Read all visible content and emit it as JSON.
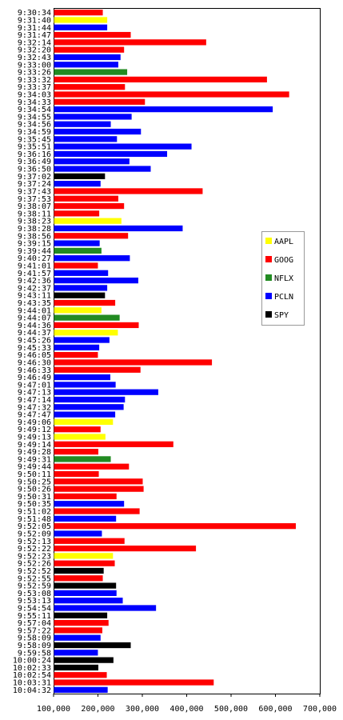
{
  "chart_data": {
    "type": "bar",
    "orientation": "horizontal",
    "xlim": [
      100000,
      700000
    ],
    "x_ticks": [
      100000,
      200000,
      300000,
      400000,
      500000,
      600000,
      700000
    ],
    "x_tick_labels": [
      "100,000",
      "200,000",
      "300,000",
      "400,000",
      "500,000",
      "600,000",
      "700,000"
    ],
    "grid": false,
    "legend_position": "right",
    "series_colors": {
      "AAPL": "#ffff00",
      "GOOG": "#ff0000",
      "NFLX": "#228b22",
      "PCLN": "#0000ff",
      "SPY": "#000000"
    },
    "legend": [
      "AAPL",
      "GOOG",
      "NFLX",
      "PCLN",
      "SPY"
    ],
    "bars": [
      {
        "label": "9:30:34",
        "series": "GOOG",
        "value": 210000
      },
      {
        "label": "9:31:40",
        "series": "AAPL",
        "value": 220000
      },
      {
        "label": "9:31:44",
        "series": "PCLN",
        "value": 220000
      },
      {
        "label": "9:31:47",
        "series": "GOOG",
        "value": 273000
      },
      {
        "label": "9:32:14",
        "series": "GOOG",
        "value": 443000
      },
      {
        "label": "9:32:20",
        "series": "GOOG",
        "value": 258000
      },
      {
        "label": "9:32:43",
        "series": "PCLN",
        "value": 250000
      },
      {
        "label": "9:33:00",
        "series": "PCLN",
        "value": 245000
      },
      {
        "label": "9:33:26",
        "series": "NFLX",
        "value": 265000
      },
      {
        "label": "9:33:32",
        "series": "GOOG",
        "value": 580000
      },
      {
        "label": "9:33:37",
        "series": "GOOG",
        "value": 260000
      },
      {
        "label": "9:34:03",
        "series": "GOOG",
        "value": 630000
      },
      {
        "label": "9:34:33",
        "series": "GOOG",
        "value": 305000
      },
      {
        "label": "9:34:54",
        "series": "PCLN",
        "value": 593000
      },
      {
        "label": "9:34:55",
        "series": "PCLN",
        "value": 275000
      },
      {
        "label": "9:34:56",
        "series": "PCLN",
        "value": 228000
      },
      {
        "label": "9:34:59",
        "series": "PCLN",
        "value": 296000
      },
      {
        "label": "9:35:45",
        "series": "PCLN",
        "value": 242000
      },
      {
        "label": "9:35:51",
        "series": "PCLN",
        "value": 410000
      },
      {
        "label": "9:36:16",
        "series": "PCLN",
        "value": 355000
      },
      {
        "label": "9:36:49",
        "series": "PCLN",
        "value": 270000
      },
      {
        "label": "9:36:50",
        "series": "PCLN",
        "value": 318000
      },
      {
        "label": "9:37:02",
        "series": "SPY",
        "value": 215000
      },
      {
        "label": "9:37:24",
        "series": "PCLN",
        "value": 205000
      },
      {
        "label": "9:37:43",
        "series": "GOOG",
        "value": 435000
      },
      {
        "label": "9:37:53",
        "series": "GOOG",
        "value": 245000
      },
      {
        "label": "9:38:07",
        "series": "GOOG",
        "value": 258000
      },
      {
        "label": "9:38:11",
        "series": "GOOG",
        "value": 202000
      },
      {
        "label": "9:38:23",
        "series": "AAPL",
        "value": 252000
      },
      {
        "label": "9:38:28",
        "series": "PCLN",
        "value": 390000
      },
      {
        "label": "9:38:56",
        "series": "GOOG",
        "value": 267000
      },
      {
        "label": "9:39:15",
        "series": "PCLN",
        "value": 203000
      },
      {
        "label": "9:39:44",
        "series": "NFLX",
        "value": 207000
      },
      {
        "label": "9:40:27",
        "series": "PCLN",
        "value": 271000
      },
      {
        "label": "9:41:01",
        "series": "GOOG",
        "value": 199000
      },
      {
        "label": "9:41:57",
        "series": "PCLN",
        "value": 222000
      },
      {
        "label": "9:42:36",
        "series": "PCLN",
        "value": 290000
      },
      {
        "label": "9:42:37",
        "series": "PCLN",
        "value": 220000
      },
      {
        "label": "9:43:11",
        "series": "SPY",
        "value": 215000
      },
      {
        "label": "9:43:35",
        "series": "GOOG",
        "value": 238000
      },
      {
        "label": "9:44:01",
        "series": "AAPL",
        "value": 207000
      },
      {
        "label": "9:44:07",
        "series": "NFLX",
        "value": 248000
      },
      {
        "label": "9:44:36",
        "series": "GOOG",
        "value": 291000
      },
      {
        "label": "9:44:37",
        "series": "AAPL",
        "value": 244000
      },
      {
        "label": "9:45:26",
        "series": "PCLN",
        "value": 225000
      },
      {
        "label": "9:45:33",
        "series": "PCLN",
        "value": 202000
      },
      {
        "label": "9:46:05",
        "series": "GOOG",
        "value": 199000
      },
      {
        "label": "9:46:30",
        "series": "GOOG",
        "value": 456000
      },
      {
        "label": "9:46:33",
        "series": "GOOG",
        "value": 295000
      },
      {
        "label": "9:46:49",
        "series": "PCLN",
        "value": 227000
      },
      {
        "label": "9:47:01",
        "series": "PCLN",
        "value": 239000
      },
      {
        "label": "9:47:13",
        "series": "PCLN",
        "value": 335000
      },
      {
        "label": "9:47:14",
        "series": "PCLN",
        "value": 260000
      },
      {
        "label": "9:47:32",
        "series": "PCLN",
        "value": 257000
      },
      {
        "label": "9:47:47",
        "series": "PCLN",
        "value": 238000
      },
      {
        "label": "9:49:06",
        "series": "AAPL",
        "value": 233000
      },
      {
        "label": "9:49:12",
        "series": "GOOG",
        "value": 205000
      },
      {
        "label": "9:49:13",
        "series": "AAPL",
        "value": 216000
      },
      {
        "label": "9:49:14",
        "series": "GOOG",
        "value": 369000
      },
      {
        "label": "9:49:28",
        "series": "GOOG",
        "value": 200000
      },
      {
        "label": "9:49:31",
        "series": "NFLX",
        "value": 228000
      },
      {
        "label": "9:49:44",
        "series": "GOOG",
        "value": 269000
      },
      {
        "label": "9:50:11",
        "series": "GOOG",
        "value": 201000
      },
      {
        "label": "9:50:25",
        "series": "GOOG",
        "value": 300000
      },
      {
        "label": "9:50:26",
        "series": "GOOG",
        "value": 302000
      },
      {
        "label": "9:50:31",
        "series": "GOOG",
        "value": 241000
      },
      {
        "label": "9:50:35",
        "series": "PCLN",
        "value": 258000
      },
      {
        "label": "9:51:02",
        "series": "GOOG",
        "value": 293000
      },
      {
        "label": "9:51:48",
        "series": "PCLN",
        "value": 240000
      },
      {
        "label": "9:52:05",
        "series": "GOOG",
        "value": 645000
      },
      {
        "label": "9:52:09",
        "series": "PCLN",
        "value": 208000
      },
      {
        "label": "9:52:13",
        "series": "GOOG",
        "value": 259000
      },
      {
        "label": "9:52:22",
        "series": "GOOG",
        "value": 420000
      },
      {
        "label": "9:52:23",
        "series": "AAPL",
        "value": 233000
      },
      {
        "label": "9:52:26",
        "series": "GOOG",
        "value": 237000
      },
      {
        "label": "9:52:52",
        "series": "SPY",
        "value": 212000
      },
      {
        "label": "9:52:55",
        "series": "GOOG",
        "value": 210000
      },
      {
        "label": "9:52:59",
        "series": "SPY",
        "value": 240000
      },
      {
        "label": "9:53:08",
        "series": "PCLN",
        "value": 241000
      },
      {
        "label": "9:53:13",
        "series": "PCLN",
        "value": 255000
      },
      {
        "label": "9:54:54",
        "series": "PCLN",
        "value": 330000
      },
      {
        "label": "9:55:11",
        "series": "SPY",
        "value": 220000
      },
      {
        "label": "9:57:04",
        "series": "GOOG",
        "value": 223000
      },
      {
        "label": "9:57:22",
        "series": "GOOG",
        "value": 209000
      },
      {
        "label": "9:58:09",
        "series": "PCLN",
        "value": 205000
      },
      {
        "label": "9:58:09",
        "series": "SPY",
        "value": 273000
      },
      {
        "label": "9:59:58",
        "series": "PCLN",
        "value": 199000
      },
      {
        "label": "10:00:24",
        "series": "SPY",
        "value": 234000
      },
      {
        "label": "10:02:33",
        "series": "SPY",
        "value": 200000
      },
      {
        "label": "10:02:54",
        "series": "GOOG",
        "value": 219000
      },
      {
        "label": "10:03:31",
        "series": "GOOG",
        "value": 460000
      },
      {
        "label": "10:04:32",
        "series": "PCLN",
        "value": 221000
      }
    ]
  }
}
